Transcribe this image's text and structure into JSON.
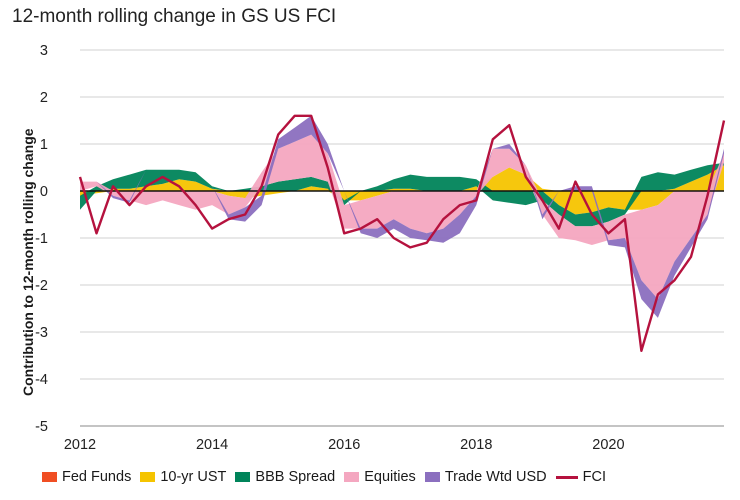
{
  "chart_data": {
    "type": "area",
    "title": "12-month rolling change in GS US FCI",
    "xlabel": "",
    "ylabel": "Contribution to 12-month rolling change",
    "ylim": [
      -5,
      3
    ],
    "xlim": [
      2012,
      2021.75
    ],
    "yticks": [
      -5,
      -4,
      -3,
      -2,
      -1,
      0,
      1,
      2,
      3
    ],
    "xticks": [
      2012,
      2014,
      2016,
      2018,
      2020
    ],
    "grid": true,
    "stacked": true,
    "x": [
      2012.0,
      2012.25,
      2012.5,
      2012.75,
      2013.0,
      2013.25,
      2013.5,
      2013.75,
      2014.0,
      2014.25,
      2014.5,
      2014.75,
      2015.0,
      2015.25,
      2015.5,
      2015.75,
      2016.0,
      2016.25,
      2016.5,
      2016.75,
      2017.0,
      2017.25,
      2017.5,
      2017.75,
      2018.0,
      2018.25,
      2018.5,
      2018.75,
      2019.0,
      2019.25,
      2019.5,
      2019.75,
      2020.0,
      2020.25,
      2020.5,
      2020.75,
      2021.0,
      2021.25,
      2021.5,
      2021.75
    ],
    "series": [
      {
        "name": "Fed Funds",
        "color": "#f04e23",
        "values": [
          0,
          0,
          0,
          0,
          0,
          0,
          0,
          0,
          0,
          0,
          0,
          0,
          0,
          0,
          0,
          0,
          0,
          0,
          0,
          0,
          0,
          0,
          0,
          0,
          0,
          0,
          0,
          0,
          0,
          0,
          0,
          0,
          0,
          0,
          0,
          0,
          0,
          0,
          0,
          0
        ]
      },
      {
        "name": "10-yr UST",
        "color": "#f5c400",
        "values": [
          -0.1,
          -0.05,
          0.05,
          0.05,
          0.1,
          0.15,
          0.25,
          0.2,
          0.05,
          -0.1,
          -0.15,
          -0.1,
          -0.05,
          0.0,
          0.1,
          0.05,
          -0.2,
          -0.2,
          -0.1,
          0.05,
          0.05,
          0.0,
          0.0,
          0.0,
          0.1,
          0.3,
          0.5,
          0.35,
          0.05,
          -0.3,
          -0.5,
          -0.45,
          -0.35,
          -0.4,
          -0.4,
          -0.3,
          0.05,
          0.2,
          0.35,
          0.55
        ]
      },
      {
        "name": "BBB Spread",
        "color": "#00845a",
        "values": [
          -0.3,
          0.1,
          0.2,
          0.3,
          0.35,
          0.3,
          0.2,
          0.2,
          0.05,
          0.0,
          0.05,
          0.1,
          0.2,
          0.25,
          0.2,
          0.15,
          -0.1,
          0.0,
          0.1,
          0.2,
          0.3,
          0.3,
          0.3,
          0.3,
          0.15,
          -0.2,
          -0.25,
          -0.3,
          -0.2,
          -0.2,
          -0.25,
          -0.3,
          -0.3,
          -0.1,
          0.3,
          0.4,
          0.3,
          0.25,
          0.2,
          0.05
        ]
      },
      {
        "name": "Equities",
        "color": "#f4a7c0",
        "values": [
          0.2,
          0.1,
          -0.1,
          -0.2,
          -0.3,
          -0.2,
          -0.3,
          -0.4,
          -0.3,
          -0.4,
          -0.2,
          0.3,
          0.7,
          0.8,
          0.9,
          0.6,
          -0.5,
          -0.6,
          -0.7,
          -0.6,
          -0.8,
          -0.9,
          -0.8,
          -0.5,
          -0.1,
          0.6,
          0.4,
          0.2,
          -0.3,
          -0.5,
          -0.3,
          -0.4,
          -0.4,
          -0.5,
          -1.5,
          -2.0,
          -1.5,
          -1.0,
          -0.5,
          0.2
        ]
      },
      {
        "name": "Trade Wtd USD",
        "color": "#8b6fbf",
        "values": [
          0.0,
          0.0,
          -0.05,
          -0.05,
          0.0,
          0.0,
          0.0,
          0.0,
          0.0,
          -0.1,
          -0.3,
          -0.2,
          0.2,
          0.3,
          0.4,
          0.2,
          0.0,
          -0.1,
          -0.2,
          -0.2,
          -0.2,
          -0.15,
          -0.3,
          -0.4,
          -0.2,
          0.0,
          0.1,
          0.0,
          -0.1,
          0.0,
          0.1,
          0.1,
          -0.1,
          -0.2,
          -0.4,
          -0.4,
          -0.3,
          -0.2,
          -0.1,
          0.1
        ]
      }
    ],
    "line": {
      "name": "FCI",
      "color": "#b5123e",
      "values": [
        0.3,
        -0.9,
        0.1,
        -0.3,
        0.1,
        0.3,
        0.1,
        -0.3,
        -0.8,
        -0.6,
        -0.5,
        0.1,
        1.2,
        1.6,
        1.6,
        0.5,
        -0.9,
        -0.8,
        -0.6,
        -1.0,
        -1.2,
        -1.1,
        -0.6,
        -0.3,
        -0.2,
        1.1,
        1.4,
        0.3,
        -0.2,
        -0.8,
        0.2,
        -0.5,
        -0.9,
        -0.6,
        -3.4,
        -2.2,
        -1.9,
        -1.4,
        -0.1,
        1.5
      ]
    },
    "legend_position": "bottom"
  }
}
